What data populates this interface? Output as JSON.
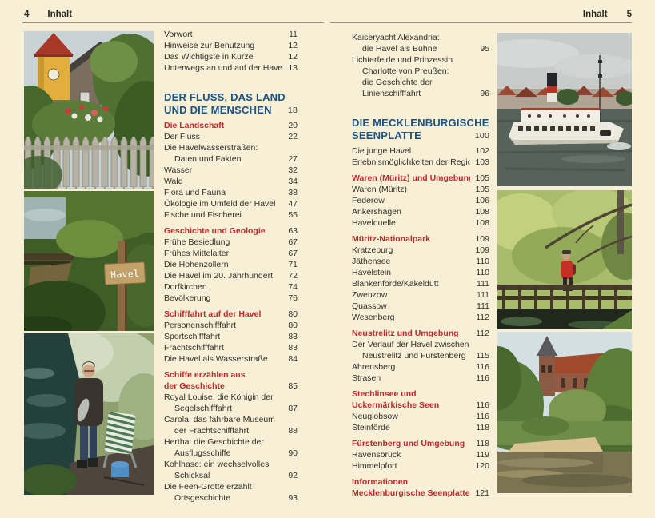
{
  "colors": {
    "page_background": "#f8efd7",
    "chapter_heading_blue": "#1c5380",
    "section_heading_red": "#c1272d",
    "body_text": "#33302a",
    "header_rule": "#97927f"
  },
  "left_page": {
    "header": {
      "page_number": "4",
      "title": "Inhalt"
    },
    "toc": [
      {
        "style": "normal",
        "lines": [
          "Vorwort"
        ],
        "page": "11"
      },
      {
        "style": "normal",
        "lines": [
          "Hinweise zur Benutzung"
        ],
        "page": "12"
      },
      {
        "style": "normal",
        "lines": [
          "Das Wichtigste in Kürze"
        ],
        "page": "12"
      },
      {
        "style": "normal",
        "lines": [
          "Unterwegs an und auf der Havel"
        ],
        "page": "13"
      },
      {
        "style": "blue",
        "lines": [
          "DER FLUSS, DAS LAND",
          "UND DIE MENSCHEN"
        ],
        "page": "18"
      },
      {
        "style": "red",
        "lines": [
          "Die Landschaft"
        ],
        "page": "20"
      },
      {
        "style": "normal",
        "lines": [
          "Der Fluss"
        ],
        "page": "22"
      },
      {
        "style": "normal",
        "lines": [
          "Die Havelwasserstraßen:",
          "Daten und Fakten"
        ],
        "page": "27"
      },
      {
        "style": "normal",
        "lines": [
          "Wasser"
        ],
        "page": "32"
      },
      {
        "style": "normal",
        "lines": [
          "Wald"
        ],
        "page": "34"
      },
      {
        "style": "normal",
        "lines": [
          "Flora und Fauna"
        ],
        "page": "38"
      },
      {
        "style": "normal",
        "lines": [
          "Ökologie im Umfeld der Havel"
        ],
        "page": "47"
      },
      {
        "style": "normal",
        "lines": [
          "Fische und Fischerei"
        ],
        "page": "55"
      },
      {
        "style": "red",
        "gap": true,
        "lines": [
          "Geschichte und Geologie"
        ],
        "page": "63"
      },
      {
        "style": "normal",
        "lines": [
          "Frühe Besiedlung"
        ],
        "page": "67"
      },
      {
        "style": "normal",
        "lines": [
          "Frühes Mittelalter"
        ],
        "page": "67"
      },
      {
        "style": "normal",
        "lines": [
          "Die Hohenzollern"
        ],
        "page": "71"
      },
      {
        "style": "normal",
        "lines": [
          "Die Havel im 20. Jahrhundert"
        ],
        "page": "72"
      },
      {
        "style": "normal",
        "lines": [
          "Dorfkirchen"
        ],
        "page": "74"
      },
      {
        "style": "normal",
        "lines": [
          "Bevölkerung"
        ],
        "page": "76"
      },
      {
        "style": "red",
        "gap": true,
        "lines": [
          "Schifffahrt auf der Havel"
        ],
        "page": "80"
      },
      {
        "style": "normal",
        "lines": [
          "Personenschifffahrt"
        ],
        "page": "80"
      },
      {
        "style": "normal",
        "lines": [
          "Sportschifffahrt"
        ],
        "page": "83"
      },
      {
        "style": "normal",
        "lines": [
          "Frachtschifffahrt"
        ],
        "page": "83"
      },
      {
        "style": "normal",
        "lines": [
          "Die Havel als Wasserstraße"
        ],
        "page": "84"
      },
      {
        "style": "red",
        "gap": true,
        "lines": [
          "Schiffe erzählen aus",
          "der Geschichte"
        ],
        "page": "85"
      },
      {
        "style": "normal",
        "lines": [
          "Royal Louise, die Königin der",
          "Segelschifffahrt"
        ],
        "page": "87"
      },
      {
        "style": "normal",
        "lines": [
          "Carola, das fahrbare Museum",
          "der Frachtschifffahrt"
        ],
        "page": "88"
      },
      {
        "style": "normal",
        "lines": [
          "Hertha: die Geschichte der",
          "Ausflugsschiffe"
        ],
        "page": "90"
      },
      {
        "style": "normal",
        "lines": [
          "Kohlhase: ein wechselvolles",
          "Schicksal"
        ],
        "page": "92"
      },
      {
        "style": "normal",
        "lines": [
          "Die Feen-Grotte erzählt",
          "Ortsgeschichte"
        ],
        "page": "93"
      }
    ]
  },
  "right_page": {
    "header": {
      "title": "Inhalt",
      "page_number": "5"
    },
    "toc": [
      {
        "style": "normal",
        "lines": [
          "Kaiseryacht Alexandria:",
          "die Havel als Bühne"
        ],
        "page": "95"
      },
      {
        "style": "normal",
        "lines": [
          "Lichterfelde und Prinzessin",
          "Charlotte von Preußen:",
          "die Geschichte der",
          "Linienschifffahrt"
        ],
        "page": "96"
      },
      {
        "style": "blue",
        "lines": [
          "DIE MECKLENBURGISCHE",
          "SEENPLATTE"
        ],
        "page": "100"
      },
      {
        "style": "normal",
        "lines": [
          "Die junge Havel"
        ],
        "page": "102"
      },
      {
        "style": "normal",
        "lines": [
          "Erlebnismöglichkeiten der Region"
        ],
        "page": "103"
      },
      {
        "style": "red",
        "gap": true,
        "lines": [
          "Waren (Müritz) und Umgebung"
        ],
        "page": "105"
      },
      {
        "style": "normal",
        "lines": [
          "Waren (Müritz)"
        ],
        "page": "105"
      },
      {
        "style": "normal",
        "lines": [
          "Federow"
        ],
        "page": "106"
      },
      {
        "style": "normal",
        "lines": [
          "Ankershagen"
        ],
        "page": "108"
      },
      {
        "style": "normal",
        "lines": [
          "Havelquelle"
        ],
        "page": "108"
      },
      {
        "style": "red",
        "gap": true,
        "lines": [
          "Müritz-Nationalpark"
        ],
        "page": "109"
      },
      {
        "style": "normal",
        "lines": [
          "Kratzeburg"
        ],
        "page": "109"
      },
      {
        "style": "normal",
        "lines": [
          "Jäthensee"
        ],
        "page": "110"
      },
      {
        "style": "normal",
        "lines": [
          "Havelstein"
        ],
        "page": "110"
      },
      {
        "style": "normal",
        "lines": [
          "Blankenförde/Kakeldütt"
        ],
        "page": "111"
      },
      {
        "style": "normal",
        "lines": [
          "Zwenzow"
        ],
        "page": "111"
      },
      {
        "style": "normal",
        "lines": [
          "Quassow"
        ],
        "page": "111"
      },
      {
        "style": "normal",
        "lines": [
          "Wesenberg"
        ],
        "page": "112"
      },
      {
        "style": "red",
        "gap": true,
        "lines": [
          "Neustrelitz und Umgebung"
        ],
        "page": "112"
      },
      {
        "style": "normal",
        "lines": [
          "Der Verlauf der Havel zwischen",
          "Neustrelitz und Fürstenberg"
        ],
        "page": "115"
      },
      {
        "style": "normal",
        "lines": [
          "Ahrensberg"
        ],
        "page": "116"
      },
      {
        "style": "normal",
        "lines": [
          "Strasen"
        ],
        "page": "116"
      },
      {
        "style": "red",
        "gap": true,
        "lines": [
          "Stechlinsee und",
          "Uckermärkische Seen"
        ],
        "page": "116"
      },
      {
        "style": "normal",
        "lines": [
          "Neuglobsow"
        ],
        "page": "116"
      },
      {
        "style": "normal",
        "lines": [
          "Steinförde"
        ],
        "page": "118"
      },
      {
        "style": "red",
        "gap": true,
        "lines": [
          "Fürstenberg und Umgebung"
        ],
        "page": "118"
      },
      {
        "style": "normal",
        "lines": [
          "Ravensbrück"
        ],
        "page": "119"
      },
      {
        "style": "normal",
        "lines": [
          "Himmelpfort"
        ],
        "page": "120"
      },
      {
        "style": "red",
        "gap": true,
        "lines": [
          "Informationen",
          "Mecklenburgische Seenplatte"
        ],
        "page": "121"
      }
    ]
  },
  "photos": {
    "havel_sign_label": "Havel"
  }
}
